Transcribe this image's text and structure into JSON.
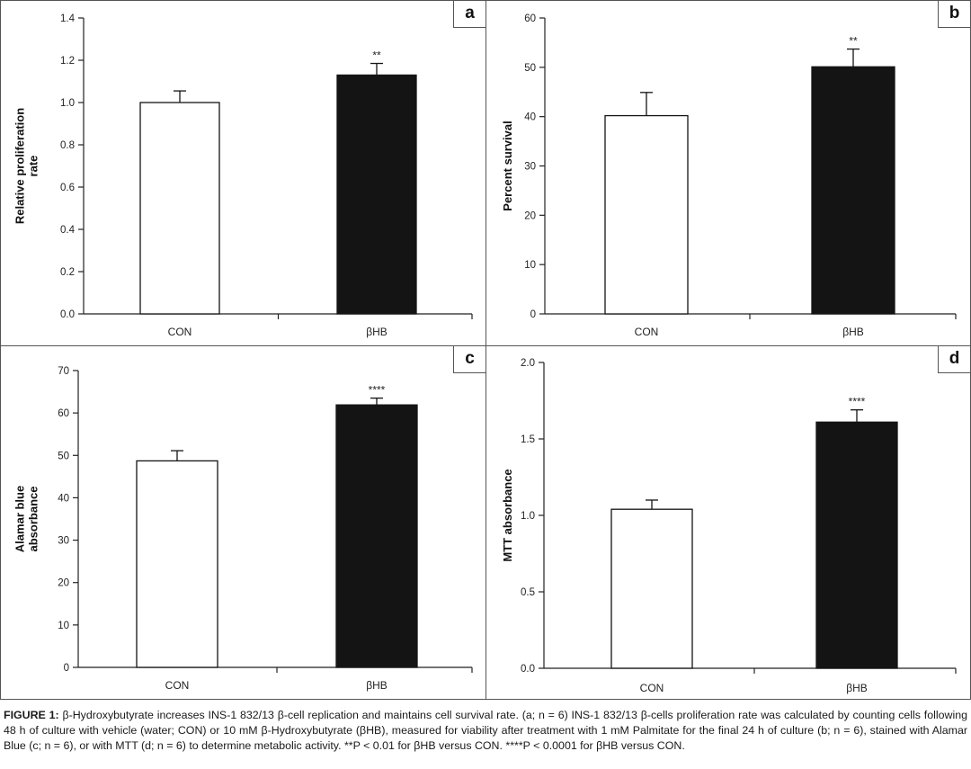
{
  "chart_data": [
    {
      "panel": "a",
      "type": "bar",
      "title": "",
      "categories": [
        "CON",
        "βHB"
      ],
      "values": [
        1.0,
        1.13
      ],
      "errors": [
        0.055,
        0.055
      ],
      "significance": [
        "",
        "**"
      ],
      "bar_colors": [
        "#ffffff",
        "#141414"
      ],
      "ylabel": [
        "Relative proliferation",
        "rate"
      ],
      "xlabel": "",
      "ylim": [
        0,
        1.4
      ],
      "yticks": [
        0.0,
        0.2,
        0.4,
        0.6,
        0.8,
        1.0,
        1.2,
        1.4
      ],
      "ytick_labels": [
        "0.0",
        "0.2",
        "0.4",
        "0.6",
        "0.8",
        "1.0",
        "1.2",
        "1.4"
      ],
      "grid": false
    },
    {
      "panel": "b",
      "type": "bar",
      "title": "",
      "categories": [
        "CON",
        "βHB"
      ],
      "values": [
        40.2,
        50.1
      ],
      "errors": [
        4.7,
        3.6
      ],
      "significance": [
        "",
        "**"
      ],
      "bar_colors": [
        "#ffffff",
        "#141414"
      ],
      "ylabel": [
        "Percent survival"
      ],
      "xlabel": "",
      "ylim": [
        0,
        60
      ],
      "yticks": [
        0,
        10,
        20,
        30,
        40,
        50,
        60
      ],
      "ytick_labels": [
        "0",
        "10",
        "20",
        "30",
        "40",
        "50",
        "60"
      ],
      "grid": false
    },
    {
      "panel": "c",
      "type": "bar",
      "title": "",
      "categories": [
        "CON",
        "βHB"
      ],
      "values": [
        48.7,
        61.9
      ],
      "errors": [
        2.4,
        1.6
      ],
      "significance": [
        "",
        "****"
      ],
      "bar_colors": [
        "#ffffff",
        "#141414"
      ],
      "ylabel": [
        "Alamar blue",
        "absorbance"
      ],
      "xlabel": "",
      "ylim": [
        0,
        70
      ],
      "yticks": [
        0,
        10,
        20,
        30,
        40,
        50,
        60,
        70
      ],
      "ytick_labels": [
        "0",
        "10",
        "20",
        "30",
        "40",
        "50",
        "60",
        "70"
      ],
      "grid": false
    },
    {
      "panel": "d",
      "type": "bar",
      "title": "",
      "categories": [
        "CON",
        "βHB"
      ],
      "values": [
        1.04,
        1.61
      ],
      "errors": [
        0.06,
        0.08
      ],
      "significance": [
        "",
        "****"
      ],
      "bar_colors": [
        "#ffffff",
        "#141414"
      ],
      "ylabel": [
        "MTT absorbance"
      ],
      "xlabel": "",
      "ylim": [
        0,
        2.0
      ],
      "yticks": [
        0.0,
        0.5,
        1.0,
        1.5,
        2.0
      ],
      "ytick_labels": [
        "0.0",
        "0.5",
        "1.0",
        "1.5",
        "2.0"
      ],
      "grid": false
    }
  ],
  "caption": {
    "label": "FIGURE 1:",
    "text": " β-Hydroxybutyrate increases INS-1 832/13 β-cell replication and maintains cell survival rate. (a; n = 6) INS-1 832/13 β-cells proliferation rate was calculated by counting cells following 48 h of culture with vehicle (water; CON) or 10 mM β-Hydroxybutyrate (βHB), measured for viability after treatment with 1 mM Palmitate for the final 24 h of culture (b; n = 6), stained with Alamar Blue (c; n = 6), or with MTT (d; n = 6) to determine metabolic activity. **P < 0.01 for βHB versus CON. ****P < 0.0001 for βHB versus CON."
  }
}
